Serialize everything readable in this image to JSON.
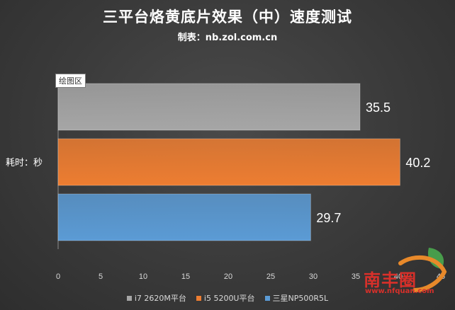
{
  "chart_data": {
    "type": "bar",
    "orientation": "horizontal",
    "title": "三平台烙黄底片效果（中）速度测试",
    "subtitle": "制表：nb.zol.com.cn",
    "plot_area_label": "绘图区",
    "ylabel": "耗时：秒",
    "xlim": [
      0,
      45
    ],
    "xticks": [
      "0",
      "5",
      "10",
      "15",
      "20",
      "25",
      "30",
      "35",
      "40",
      "45"
    ],
    "grid": false,
    "legend_position": "bottom",
    "series": [
      {
        "name": "i7 2620M平台",
        "value": 35.5,
        "label": "35.5",
        "color": "#a6a6a6"
      },
      {
        "name": "i5 5200U平台",
        "value": 40.2,
        "label": "40.2",
        "color": "#ed7d31"
      },
      {
        "name": "三星NP500R5L",
        "value": 29.7,
        "label": "29.7",
        "color": "#5b9bd5"
      }
    ]
  },
  "watermark": {
    "text": "南丰圈",
    "url": "www.nfquan.com"
  }
}
